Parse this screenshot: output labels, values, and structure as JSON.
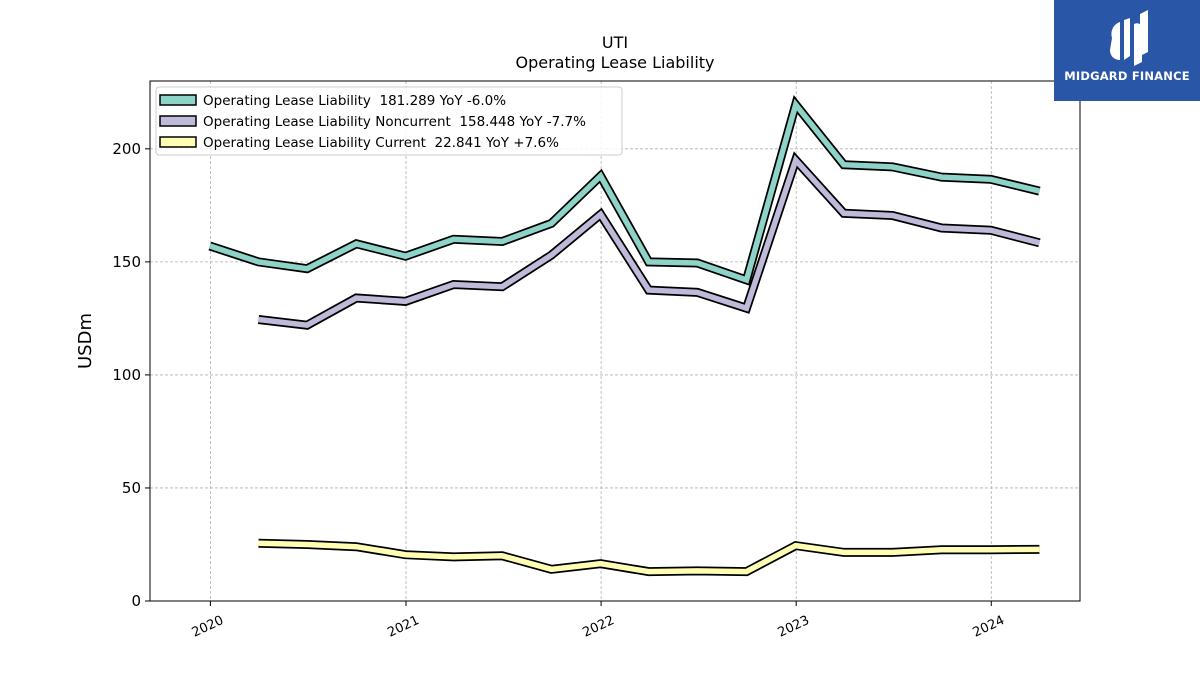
{
  "chart_data": {
    "type": "line",
    "title": "UTI",
    "subtitle": "Operating Lease Liability",
    "ylabel": "USDm",
    "xlabel": "",
    "ylim": [
      0,
      230
    ],
    "xlim": [
      "2019-09-10",
      "2024-06-15"
    ],
    "yticks": [
      0,
      50,
      100,
      150,
      200
    ],
    "xticks": [
      "2020-01-01",
      "2021-01-01",
      "2022-01-01",
      "2023-01-01",
      "2024-01-01"
    ],
    "xtick_labels": [
      "2020",
      "2021",
      "2022",
      "2023",
      "2024"
    ],
    "grid": true,
    "legend_position": "top-left",
    "series": [
      {
        "name": "Operating Lease Liability  181.289 YoY -6.0%",
        "color": "#8dd3c7",
        "points": [
          {
            "x": "2019-12-31",
            "y": 157
          },
          {
            "x": "2020-03-31",
            "y": 150
          },
          {
            "x": "2020-06-30",
            "y": 147
          },
          {
            "x": "2020-09-30",
            "y": 158
          },
          {
            "x": "2020-12-31",
            "y": 152.5
          },
          {
            "x": "2021-03-31",
            "y": 160
          },
          {
            "x": "2021-06-30",
            "y": 159
          },
          {
            "x": "2021-09-30",
            "y": 167
          },
          {
            "x": "2021-12-31",
            "y": 188
          },
          {
            "x": "2022-03-31",
            "y": 150
          },
          {
            "x": "2022-06-30",
            "y": 149.5
          },
          {
            "x": "2022-09-30",
            "y": 142
          },
          {
            "x": "2022-12-31",
            "y": 219.5
          },
          {
            "x": "2023-03-31",
            "y": 193
          },
          {
            "x": "2023-06-30",
            "y": 192
          },
          {
            "x": "2023-09-30",
            "y": 187.5
          },
          {
            "x": "2023-12-31",
            "y": 186.5
          },
          {
            "x": "2024-03-31",
            "y": 181.289
          }
        ]
      },
      {
        "name": "Operating Lease Liability Noncurrent  158.448 YoY -7.7%",
        "color": "#bebada",
        "points": [
          {
            "x": "2020-03-31",
            "y": 124.5
          },
          {
            "x": "2020-06-30",
            "y": 122
          },
          {
            "x": "2020-09-30",
            "y": 134
          },
          {
            "x": "2020-12-31",
            "y": 132.5
          },
          {
            "x": "2021-03-31",
            "y": 140
          },
          {
            "x": "2021-06-30",
            "y": 139
          },
          {
            "x": "2021-09-30",
            "y": 153
          },
          {
            "x": "2021-12-31",
            "y": 171
          },
          {
            "x": "2022-03-31",
            "y": 137.5
          },
          {
            "x": "2022-06-30",
            "y": 136.5
          },
          {
            "x": "2022-09-30",
            "y": 129.5
          },
          {
            "x": "2022-12-31",
            "y": 195
          },
          {
            "x": "2023-03-31",
            "y": 171.5
          },
          {
            "x": "2023-06-30",
            "y": 170.5
          },
          {
            "x": "2023-09-30",
            "y": 165
          },
          {
            "x": "2023-12-31",
            "y": 164
          },
          {
            "x": "2024-03-31",
            "y": 158.448
          }
        ]
      },
      {
        "name": "Operating Lease Liability Current  22.841 YoY +7.6%",
        "color": "#ffffb3",
        "points": [
          {
            "x": "2020-03-31",
            "y": 25.5
          },
          {
            "x": "2020-06-30",
            "y": 25
          },
          {
            "x": "2020-09-30",
            "y": 24
          },
          {
            "x": "2020-12-31",
            "y": 20.5
          },
          {
            "x": "2021-03-31",
            "y": 19.5
          },
          {
            "x": "2021-06-30",
            "y": 20
          },
          {
            "x": "2021-09-30",
            "y": 14
          },
          {
            "x": "2021-12-31",
            "y": 16.5
          },
          {
            "x": "2022-03-31",
            "y": 13
          },
          {
            "x": "2022-06-30",
            "y": 13.3
          },
          {
            "x": "2022-09-30",
            "y": 13
          },
          {
            "x": "2022-12-31",
            "y": 24.5
          },
          {
            "x": "2023-03-31",
            "y": 21.5
          },
          {
            "x": "2023-06-30",
            "y": 21.5
          },
          {
            "x": "2023-09-30",
            "y": 22.7
          },
          {
            "x": "2023-12-31",
            "y": 22.7
          },
          {
            "x": "2024-03-31",
            "y": 22.841
          }
        ]
      }
    ]
  },
  "branding": {
    "logo_text": "MIDGARD FINANCE",
    "background_color": "#2a56a8"
  }
}
